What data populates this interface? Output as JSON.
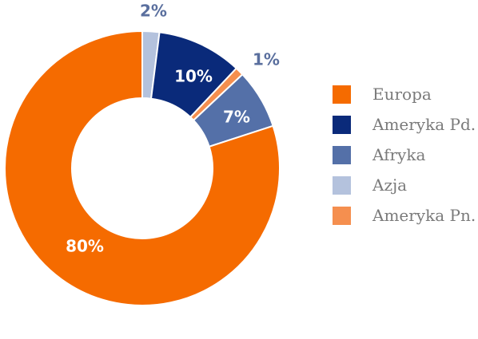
{
  "chart_data": {
    "type": "pie",
    "variant": "donut",
    "start_angle_deg": 0,
    "direction": "clockwise",
    "segments": [
      {
        "name": "Azja",
        "value": 2,
        "label": "2%",
        "color": "#b4c2dd",
        "label_color": "#5a6f9e",
        "label_placement": "outside"
      },
      {
        "name": "Ameryka Pd.",
        "value": 10,
        "label": "10%",
        "color": "#0a2a7a",
        "label_color": "#ffffff",
        "label_placement": "inside"
      },
      {
        "name": "Ameryka Pn.",
        "value": 1,
        "label": "1%",
        "color": "#f58f4f",
        "label_color": "#5a6f9e",
        "label_placement": "outside"
      },
      {
        "name": "Afryka",
        "value": 7,
        "label": "7%",
        "color": "#5470a8",
        "label_color": "#ffffff",
        "label_placement": "inside"
      },
      {
        "name": "Europa",
        "value": 80,
        "label": "80%",
        "color": "#f56b00",
        "label_color": "#ffffff",
        "label_placement": "inside"
      }
    ],
    "legend": {
      "placement": "right",
      "items": [
        {
          "label": "Europa",
          "color": "#f56b00"
        },
        {
          "label": "Ameryka Pd.",
          "color": "#0a2a7a"
        },
        {
          "label": "Afryka",
          "color": "#5470a8"
        },
        {
          "label": "Azja",
          "color": "#b4c2dd"
        },
        {
          "label": "Ameryka Pn.",
          "color": "#f58f4f"
        }
      ]
    }
  }
}
